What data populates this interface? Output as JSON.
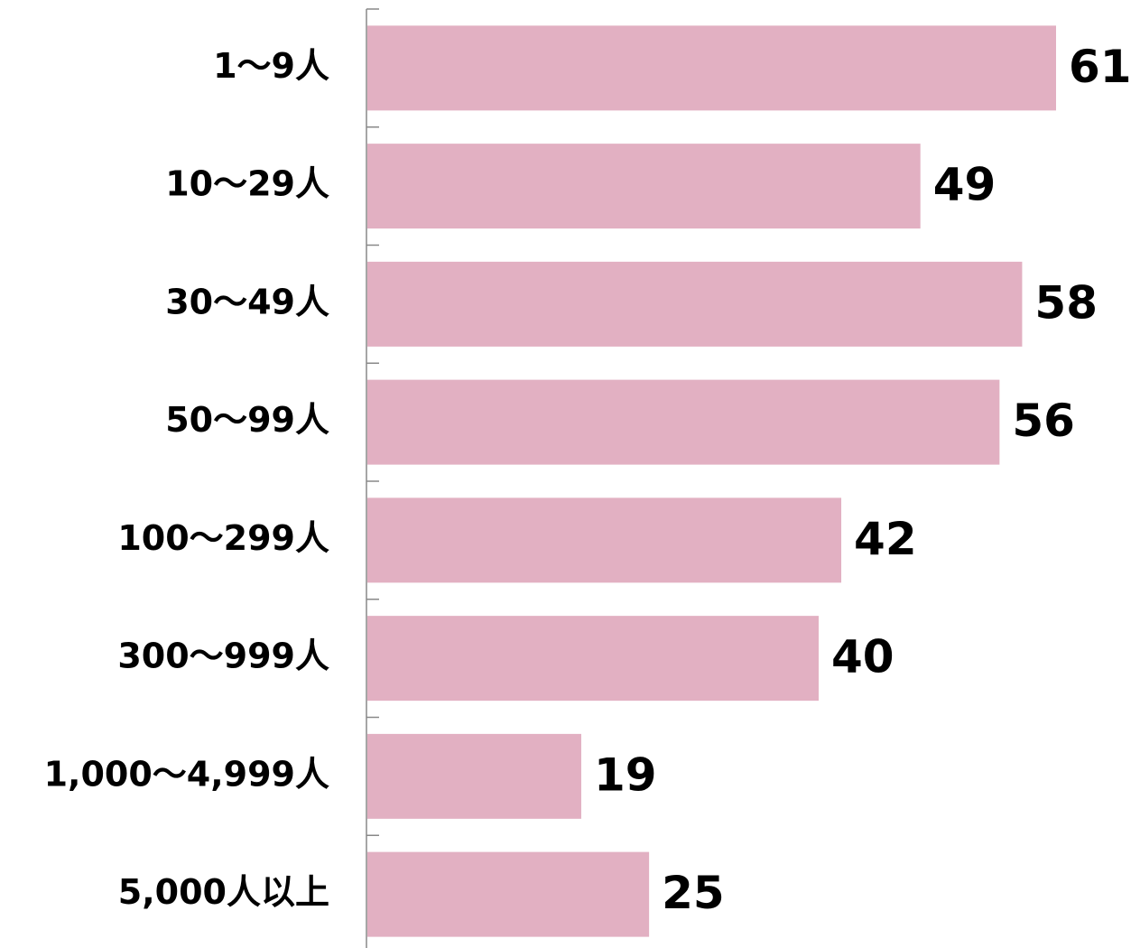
{
  "chart_data": {
    "type": "barh",
    "categories": [
      "1～9人",
      "10～29人",
      "30～49人",
      "50～99人",
      "100～299人",
      "300～999人",
      "1,000～4,999人",
      "5,000人以上"
    ],
    "values": [
      61,
      49,
      58,
      56,
      42,
      40,
      19,
      25
    ],
    "color": "#e2b0c2"
  }
}
